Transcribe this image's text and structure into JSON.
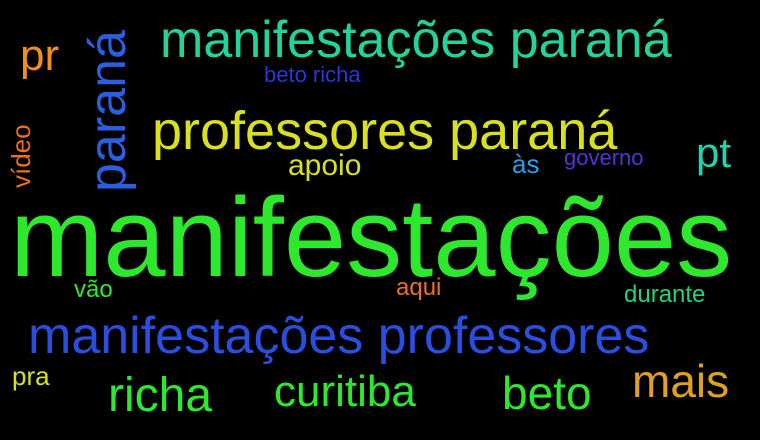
{
  "words": [
    {
      "key": "w0",
      "text": "manifestações",
      "color": "#2ee82e"
    },
    {
      "key": "w1",
      "text": "manifestações paraná",
      "color": "#22d39a"
    },
    {
      "key": "w2",
      "text": "professores paraná",
      "color": "#d9e021"
    },
    {
      "key": "w3",
      "text": "manifestações professores",
      "color": "#2a4fe0"
    },
    {
      "key": "w4",
      "text": "paraná",
      "color": "#2a5fe0"
    },
    {
      "key": "w5",
      "text": "pr",
      "color": "#f0901a"
    },
    {
      "key": "w6",
      "text": "beto richa",
      "color": "#2c36d6"
    },
    {
      "key": "w7",
      "text": "pt",
      "color": "#22d3b0"
    },
    {
      "key": "w8",
      "text": "governo",
      "color": "#5533d6"
    },
    {
      "key": "w9",
      "text": "às",
      "color": "#2aa0e6"
    },
    {
      "key": "w10",
      "text": "apoio",
      "color": "#d9e021"
    },
    {
      "key": "w11",
      "text": "vídeo",
      "color": "#f0701a"
    },
    {
      "key": "w12",
      "text": "vão",
      "color": "#2ee82e"
    },
    {
      "key": "w13",
      "text": "aqui",
      "color": "#f0701a"
    },
    {
      "key": "w14",
      "text": "durante",
      "color": "#22d37a"
    },
    {
      "key": "w15",
      "text": "pra",
      "color": "#d9e021"
    },
    {
      "key": "w16",
      "text": "richa",
      "color": "#2ee82e"
    },
    {
      "key": "w17",
      "text": "curitiba",
      "color": "#2ee82e"
    },
    {
      "key": "w18",
      "text": "beto",
      "color": "#2ee82e"
    },
    {
      "key": "w19",
      "text": "mais",
      "color": "#e0a020"
    }
  ]
}
